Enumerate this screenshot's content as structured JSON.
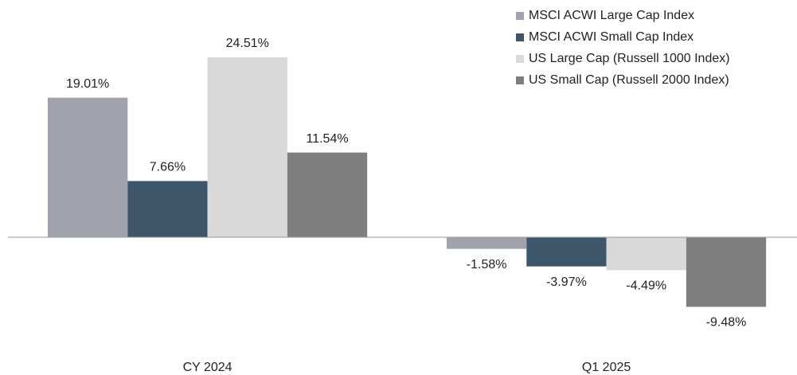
{
  "chart_data": {
    "type": "bar",
    "categories": [
      "CY 2024",
      "Q1 2025"
    ],
    "series": [
      {
        "name": "MSCI ACWI Large Cap Index",
        "color": "#a0a3ae",
        "values": [
          19.01,
          -1.58
        ],
        "value_labels": [
          "19.01%",
          "-1.58%"
        ]
      },
      {
        "name": "MSCI ACWI Small Cap Index",
        "color": "#3d566a",
        "values": [
          7.66,
          -3.97
        ],
        "value_labels": [
          "7.66%",
          "-3.97%"
        ]
      },
      {
        "name": "US Large Cap (Russell 1000 Index)",
        "color": "#d9d9d9",
        "values": [
          24.51,
          -4.49
        ],
        "value_labels": [
          "24.51%",
          "-4.49%"
        ]
      },
      {
        "name": "US Small Cap (Russell 2000 Index)",
        "color": "#7f7f7f",
        "values": [
          11.54,
          -9.48
        ],
        "value_labels": [
          "11.54%",
          "-9.48%"
        ]
      }
    ],
    "legend": "top-right"
  }
}
